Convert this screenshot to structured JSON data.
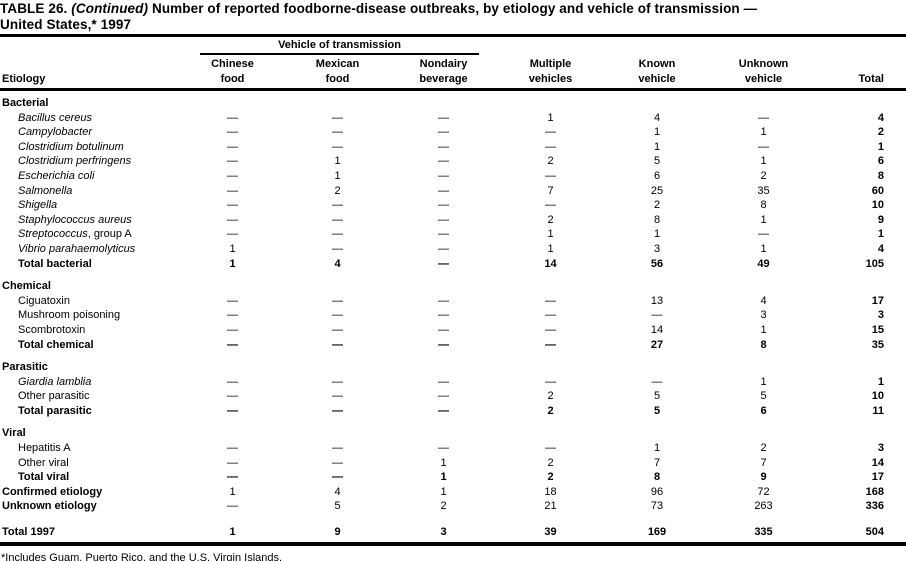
{
  "title": {
    "table_label": "TABLE 26.",
    "continued": "(Continued)",
    "line1_rest": "Number of reported foodborne-disease outbreaks, by etiology and vehicle of transmission —",
    "line2": "United States,* 1997"
  },
  "header": {
    "etiology": "Etiology",
    "spanner": "Vehicle of transmission",
    "cols": [
      {
        "line1": "Chinese",
        "line2": "food"
      },
      {
        "line1": "Mexican",
        "line2": "food"
      },
      {
        "line1": "Nondairy",
        "line2": "beverage"
      },
      {
        "line1": "Multiple",
        "line2": "vehicles"
      },
      {
        "line1": "Known",
        "line2": "vehicle"
      },
      {
        "line1": "Unknown",
        "line2": "vehicle"
      }
    ],
    "total": "Total"
  },
  "table": {
    "rows": [
      {
        "type": "section",
        "label": "Bacterial"
      },
      {
        "type": "data",
        "style": "italic",
        "label": "Bacillus cereus",
        "values": [
          "—",
          "—",
          "—",
          "1",
          "4",
          "—",
          "4"
        ]
      },
      {
        "type": "data",
        "style": "italic",
        "label": "Campylobacter",
        "values": [
          "—",
          "—",
          "—",
          "—",
          "1",
          "1",
          "2"
        ]
      },
      {
        "type": "data",
        "style": "italic",
        "label": "Clostridium botulinum",
        "values": [
          "—",
          "—",
          "—",
          "—",
          "1",
          "—",
          "1"
        ]
      },
      {
        "type": "data",
        "style": "italic",
        "label": "Clostridium perfringens",
        "values": [
          "—",
          "1",
          "—",
          "2",
          "5",
          "1",
          "6"
        ]
      },
      {
        "type": "data",
        "style": "italic",
        "label": "Escherichia coli",
        "values": [
          "—",
          "1",
          "—",
          "—",
          "6",
          "2",
          "8"
        ]
      },
      {
        "type": "data",
        "style": "italic",
        "label": "Salmonella",
        "values": [
          "—",
          "2",
          "—",
          "7",
          "25",
          "35",
          "60"
        ]
      },
      {
        "type": "data",
        "style": "italic",
        "label": "Shigella",
        "values": [
          "—",
          "—",
          "—",
          "—",
          "2",
          "8",
          "10"
        ]
      },
      {
        "type": "data",
        "style": "italic",
        "label": "Staphylococcus aureus",
        "values": [
          "—",
          "—",
          "—",
          "2",
          "8",
          "1",
          "9"
        ]
      },
      {
        "type": "data",
        "style": "italic",
        "label": "Streptococcus",
        "label_suffix": ", group A",
        "values": [
          "—",
          "—",
          "—",
          "1",
          "1",
          "—",
          "1"
        ]
      },
      {
        "type": "data",
        "style": "italic",
        "label": "Vibrio parahaemolyticus",
        "values": [
          "1",
          "—",
          "—",
          "1",
          "3",
          "1",
          "4"
        ]
      },
      {
        "type": "data",
        "style": "bold",
        "values_bold": true,
        "label": "Total bacterial",
        "values": [
          "1",
          "4",
          "—",
          "14",
          "56",
          "49",
          "105"
        ]
      },
      {
        "type": "gap"
      },
      {
        "type": "section",
        "label": "Chemical"
      },
      {
        "type": "data",
        "style": "regular",
        "label": "Ciguatoxin",
        "values": [
          "—",
          "—",
          "—",
          "—",
          "13",
          "4",
          "17"
        ]
      },
      {
        "type": "data",
        "style": "regular",
        "label": "Mushroom poisoning",
        "values": [
          "—",
          "—",
          "—",
          "—",
          "—",
          "3",
          "3"
        ]
      },
      {
        "type": "data",
        "style": "regular",
        "label": "Scombrotoxin",
        "values": [
          "—",
          "—",
          "—",
          "—",
          "14",
          "1",
          "15"
        ]
      },
      {
        "type": "data",
        "style": "bold",
        "values_bold": true,
        "label": "Total chemical",
        "values": [
          "—",
          "—",
          "—",
          "—",
          "27",
          "8",
          "35"
        ]
      },
      {
        "type": "gap"
      },
      {
        "type": "section",
        "label": "Parasitic"
      },
      {
        "type": "data",
        "style": "italic",
        "label": "Giardia lamblia",
        "values": [
          "—",
          "—",
          "—",
          "—",
          "—",
          "1",
          "1"
        ]
      },
      {
        "type": "data",
        "style": "regular",
        "label": "Other parasitic",
        "values": [
          "—",
          "—",
          "—",
          "2",
          "5",
          "5",
          "10"
        ]
      },
      {
        "type": "data",
        "style": "bold",
        "values_bold": true,
        "label": "Total parasitic",
        "values": [
          "—",
          "—",
          "—",
          "2",
          "5",
          "6",
          "11"
        ]
      },
      {
        "type": "gap"
      },
      {
        "type": "section",
        "label": "Viral"
      },
      {
        "type": "data",
        "style": "regular",
        "label": "Hepatitis A",
        "values": [
          "—",
          "—",
          "—",
          "—",
          "1",
          "2",
          "3"
        ]
      },
      {
        "type": "data",
        "style": "regular",
        "label": "Other viral",
        "values": [
          "—",
          "—",
          "1",
          "2",
          "7",
          "7",
          "14"
        ]
      },
      {
        "type": "data",
        "style": "bold",
        "values_bold": true,
        "label": "Total viral",
        "values": [
          "—",
          "—",
          "1",
          "2",
          "8",
          "9",
          "17"
        ]
      },
      {
        "type": "data",
        "style": "bold",
        "no_indent": true,
        "label": "Confirmed etiology",
        "values": [
          "1",
          "4",
          "1",
          "18",
          "96",
          "72",
          "168"
        ]
      },
      {
        "type": "data",
        "style": "bold",
        "no_indent": true,
        "label": "Unknown etiology",
        "values": [
          "—",
          "5",
          "2",
          "21",
          "73",
          "263",
          "336"
        ]
      },
      {
        "type": "gap2"
      },
      {
        "type": "data",
        "style": "bold",
        "values_bold": true,
        "no_indent": true,
        "label": "Total 1997",
        "values": [
          "1",
          "9",
          "3",
          "39",
          "169",
          "335",
          "504"
        ]
      }
    ]
  },
  "footnote": "*Includes Guam, Puerto Rico, and the U.S. Virgin Islands."
}
